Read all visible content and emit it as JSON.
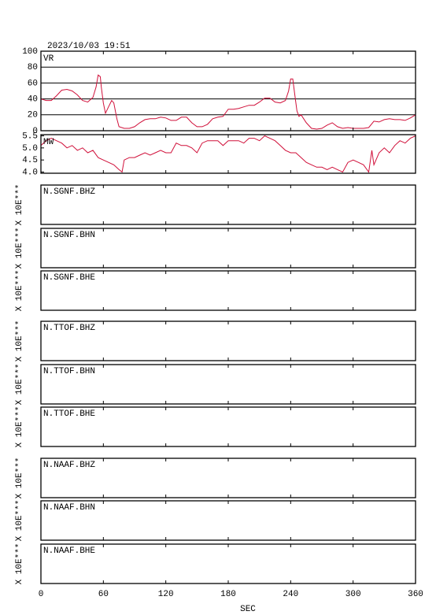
{
  "title": "2023/10/03 19:51",
  "chart_data": [
    {
      "type": "line",
      "label": "VR",
      "color": "#d0103a",
      "ylim": [
        0,
        100
      ],
      "yticks": [
        0,
        20,
        40,
        60,
        80,
        100
      ],
      "grid": true,
      "xlim": [
        0,
        360
      ],
      "x": [
        0,
        5,
        10,
        15,
        20,
        25,
        30,
        35,
        40,
        45,
        50,
        53,
        55,
        57,
        58,
        60,
        62,
        65,
        68,
        70,
        73,
        75,
        80,
        85,
        90,
        95,
        100,
        105,
        110,
        115,
        120,
        125,
        130,
        135,
        140,
        145,
        150,
        155,
        160,
        165,
        170,
        175,
        180,
        185,
        190,
        195,
        200,
        205,
        210,
        215,
        220,
        225,
        230,
        235,
        238,
        240,
        242,
        244,
        246,
        248,
        250,
        255,
        260,
        265,
        270,
        275,
        280,
        285,
        290,
        295,
        300,
        305,
        310,
        315,
        320,
        325,
        330,
        335,
        340,
        345,
        350,
        355,
        360
      ],
      "values": [
        40,
        38,
        38,
        44,
        51,
        52,
        50,
        45,
        38,
        36,
        42,
        55,
        70,
        68,
        55,
        35,
        22,
        30,
        38,
        35,
        15,
        5,
        3,
        3,
        5,
        10,
        14,
        15,
        15,
        17,
        16,
        13,
        13,
        17,
        17,
        10,
        5,
        5,
        8,
        15,
        17,
        18,
        27,
        27,
        28,
        30,
        32,
        32,
        36,
        41,
        41,
        36,
        35,
        38,
        50,
        65,
        65,
        45,
        25,
        18,
        20,
        10,
        3,
        2,
        3,
        7,
        10,
        5,
        3,
        4,
        3,
        3,
        3,
        4,
        12,
        11,
        14,
        15,
        14,
        14,
        13,
        16,
        20
      ]
    },
    {
      "type": "line",
      "label": "MW",
      "color": "#d0103a",
      "ylim": [
        3.95,
        5.55
      ],
      "yticks": [
        {
          "value": 4,
          "label": "4.0"
        },
        4.5,
        {
          "value": 5,
          "label": "5.0"
        },
        5.5
      ],
      "grid": false,
      "xlim": [
        0,
        360
      ],
      "x": [
        0,
        5,
        10,
        15,
        20,
        25,
        30,
        35,
        40,
        45,
        50,
        55,
        60,
        65,
        70,
        75,
        78,
        80,
        85,
        90,
        95,
        100,
        105,
        110,
        115,
        120,
        125,
        130,
        135,
        140,
        145,
        150,
        155,
        160,
        165,
        170,
        175,
        180,
        185,
        190,
        195,
        200,
        205,
        210,
        215,
        220,
        225,
        230,
        235,
        240,
        245,
        250,
        255,
        260,
        265,
        270,
        275,
        280,
        285,
        290,
        295,
        300,
        305,
        310,
        315,
        318,
        320,
        325,
        330,
        335,
        340,
        345,
        350,
        355,
        360
      ],
      "values": [
        5.1,
        5.3,
        5.4,
        5.3,
        5.2,
        5.0,
        5.1,
        4.9,
        5.0,
        4.8,
        4.9,
        4.6,
        4.5,
        4.4,
        4.3,
        4.1,
        4.0,
        4.5,
        4.6,
        4.6,
        4.7,
        4.8,
        4.7,
        4.8,
        4.9,
        4.8,
        4.8,
        5.2,
        5.1,
        5.1,
        5.0,
        4.8,
        5.2,
        5.3,
        5.3,
        5.3,
        5.1,
        5.3,
        5.3,
        5.3,
        5.2,
        5.4,
        5.4,
        5.3,
        5.5,
        5.4,
        5.3,
        5.1,
        4.9,
        4.8,
        4.8,
        4.6,
        4.4,
        4.3,
        4.2,
        4.2,
        4.1,
        4.2,
        4.1,
        4.0,
        4.4,
        4.5,
        4.4,
        4.3,
        4.0,
        4.9,
        4.3,
        4.8,
        5.0,
        4.8,
        5.1,
        5.3,
        5.2,
        5.4,
        5.5
      ]
    }
  ],
  "panels": [
    {
      "label": "N.SGNF.BHZ",
      "ylabel": "X 10E***"
    },
    {
      "label": "N.SGNF.BHN",
      "ylabel": "X 10E***"
    },
    {
      "label": "N.SGNF.BHE",
      "ylabel": "X 10E***"
    },
    {
      "label": "N.TTOF.BHZ",
      "ylabel": "X 10E***"
    },
    {
      "label": "N.TTOF.BHN",
      "ylabel": "X 10E***"
    },
    {
      "label": "N.TTOF.BHE",
      "ylabel": "X 10E***"
    },
    {
      "label": "N.NAAF.BHZ",
      "ylabel": "X 10E***"
    },
    {
      "label": "N.NAAF.BHN",
      "ylabel": "X 10E***"
    },
    {
      "label": "N.NAAF.BHE",
      "ylabel": "X 10E***"
    }
  ],
  "x_axis": {
    "xlim": [
      0,
      360
    ],
    "xticks": [
      0,
      60,
      120,
      180,
      240,
      300,
      360
    ],
    "xlabel": "SEC"
  }
}
